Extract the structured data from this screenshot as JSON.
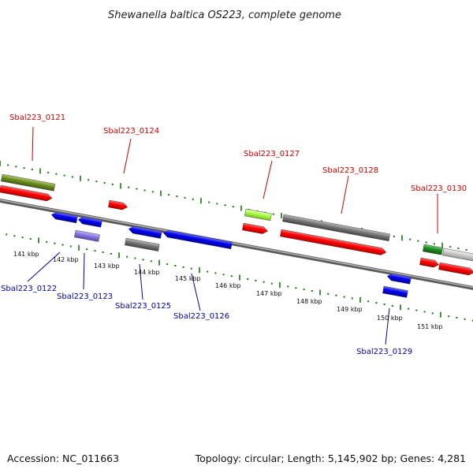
{
  "title": "Shewanella baltica OS223, complete genome",
  "footer": {
    "accession_label": "Accession: NC_011663",
    "summary": "Topology: circular; Length: 5,145,902 bp; Genes: 4,281"
  },
  "colors": {
    "top_label": "#cc0000",
    "bottom_label": "#0000aa",
    "ticks": "#117711",
    "backbone": "#888888",
    "red": "#ff0000",
    "blue": "#0000ee",
    "gray": "#777777",
    "olive": "#6b8e23",
    "lime": "#aaff44",
    "green": "#1e8a1e",
    "lightgray": "#cccccc",
    "lavender": "#8877dd"
  },
  "scale": {
    "kbp_labels": [
      "141 kbp",
      "142 kbp",
      "143 kbp",
      "144 kbp",
      "145 kbp",
      "146 kbp",
      "147 kbp",
      "148 kbp",
      "149 kbp",
      "150 kbp",
      "151 kbp"
    ]
  },
  "gene_labels_top": [
    "Sbal223_0121",
    "Sbal223_0124",
    "Sbal223_0127",
    "Sbal223_0128",
    "Sbal223_0130"
  ],
  "gene_labels_bottom": [
    "Sbal223_0122",
    "Sbal223_0123",
    "Sbal223_0125",
    "Sbal223_0126",
    "Sbal223_0129"
  ]
}
